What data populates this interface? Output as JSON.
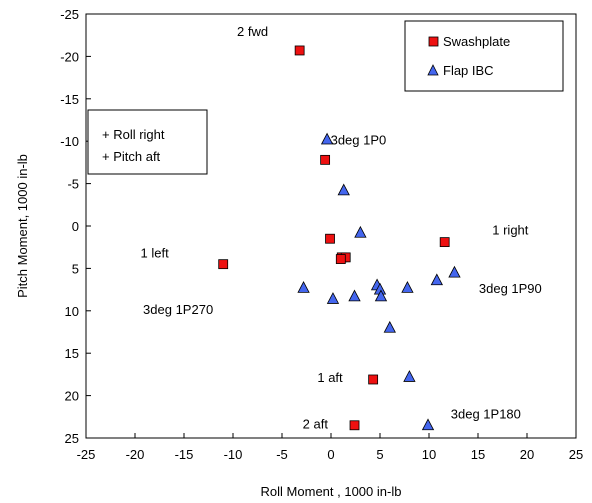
{
  "chart_data": {
    "type": "scatter",
    "title": "",
    "xlabel": "Roll Moment , 1000 in-lb",
    "ylabel": "Pitch Moment, 1000 in-lb",
    "xlim": [
      -25,
      25
    ],
    "ylim": [
      -25,
      25
    ],
    "y_inverted": true,
    "x_ticks": [
      -25,
      -20,
      -15,
      -10,
      -5,
      0,
      5,
      10,
      15,
      20,
      25
    ],
    "y_ticks": [
      -25,
      -20,
      -15,
      -10,
      -5,
      0,
      5,
      10,
      15,
      20,
      25
    ],
    "grid": false,
    "legend_position": "top-right",
    "series": [
      {
        "name": "Swashplate",
        "marker": "square",
        "color": "#ee1111",
        "points": [
          {
            "x": -3.2,
            "y": -20.7
          },
          {
            "x": -0.6,
            "y": -7.8
          },
          {
            "x": -0.1,
            "y": 1.5
          },
          {
            "x": 1.1,
            "y": 3.7
          },
          {
            "x": 1.5,
            "y": 3.7
          },
          {
            "x": 1.0,
            "y": 3.9
          },
          {
            "x": 11.6,
            "y": 1.9
          },
          {
            "x": -11.0,
            "y": 4.5
          },
          {
            "x": 4.3,
            "y": 18.1
          },
          {
            "x": 2.4,
            "y": 23.5
          }
        ]
      },
      {
        "name": "Flap IBC",
        "marker": "triangle",
        "color": "#4466ee",
        "points": [
          {
            "x": -0.4,
            "y": -10.2
          },
          {
            "x": 1.3,
            "y": -4.2
          },
          {
            "x": 3.0,
            "y": 0.8
          },
          {
            "x": 12.6,
            "y": 5.5
          },
          {
            "x": 10.8,
            "y": 6.4
          },
          {
            "x": 7.8,
            "y": 7.3
          },
          {
            "x": 4.7,
            "y": 7.0
          },
          {
            "x": 5.0,
            "y": 7.5
          },
          {
            "x": 5.1,
            "y": 8.3
          },
          {
            "x": 2.4,
            "y": 8.3
          },
          {
            "x": 0.2,
            "y": 8.6
          },
          {
            "x": -2.8,
            "y": 7.3
          },
          {
            "x": 6.0,
            "y": 12.0
          },
          {
            "x": 8.0,
            "y": 17.8
          },
          {
            "x": 9.9,
            "y": 23.5
          }
        ]
      }
    ],
    "annotations": [
      {
        "text": "2 fwd",
        "x": -8.0,
        "y": -22.8,
        "boxed": false
      },
      {
        "text": "3deg 1P0",
        "x": 2.8,
        "y": -10.0,
        "boxed": false
      },
      {
        "text": "1 left",
        "x": -18.0,
        "y": 3.3,
        "boxed": false
      },
      {
        "text": "1 right",
        "x": 18.3,
        "y": 0.6,
        "boxed": false
      },
      {
        "text": "3deg 1P90",
        "x": 18.3,
        "y": 7.5,
        "boxed": false
      },
      {
        "text": "3deg 1P270",
        "x": -15.6,
        "y": 10.0,
        "boxed": false
      },
      {
        "text": "1 aft",
        "x": -0.1,
        "y": 18.0,
        "boxed": false
      },
      {
        "text": "2 aft",
        "x": -1.6,
        "y": 23.5,
        "boxed": false
      },
      {
        "text": "3deg 1P180",
        "x": 15.8,
        "y": 22.3,
        "boxed": false
      }
    ],
    "sign_convention": [
      "+ Roll right",
      "+ Pitch aft"
    ]
  }
}
